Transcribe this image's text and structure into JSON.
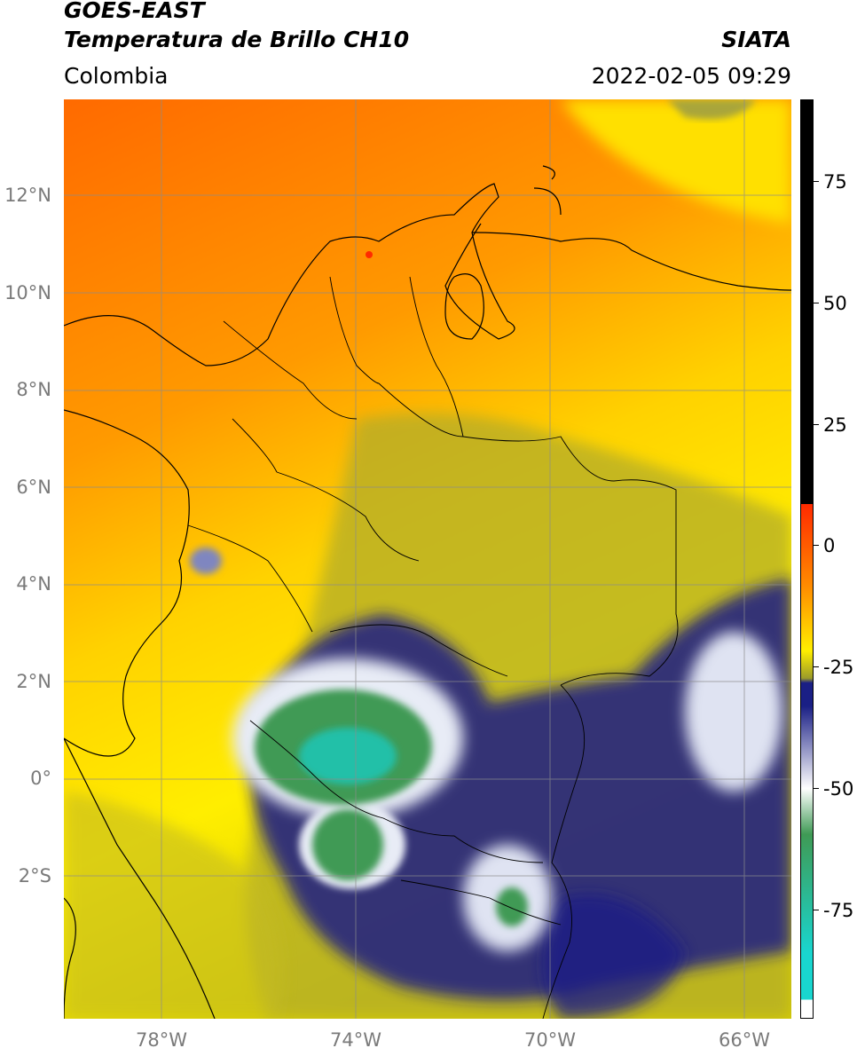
{
  "header": {
    "title_line1": "GOES-EAST",
    "title_line2": "Temperatura de Brillo CH10",
    "agency": "SIATA",
    "region": "Colombia",
    "datetime": "2022-02-05 09:29"
  },
  "map": {
    "latitude_labels": [
      "12°N",
      "10°N",
      "8°N",
      "6°N",
      "4°N",
      "2°N",
      "0°",
      "2°S"
    ],
    "longitude_labels": [
      "78°W",
      "74°W",
      "70°W",
      "66°W"
    ]
  },
  "colorbar": {
    "tick_labels": [
      "75",
      "50",
      "25",
      "0",
      "-25",
      "-50",
      "-75"
    ],
    "colors": {
      "black": "#000000",
      "red": "#ff2a00",
      "orange": "#ff8c00",
      "yellow": "#ffee00",
      "olive": "#9a9a2a",
      "navy": "#1a1f85",
      "white": "#ffffff",
      "green": "#3f9a55",
      "cyan": "#19d6cf"
    }
  }
}
